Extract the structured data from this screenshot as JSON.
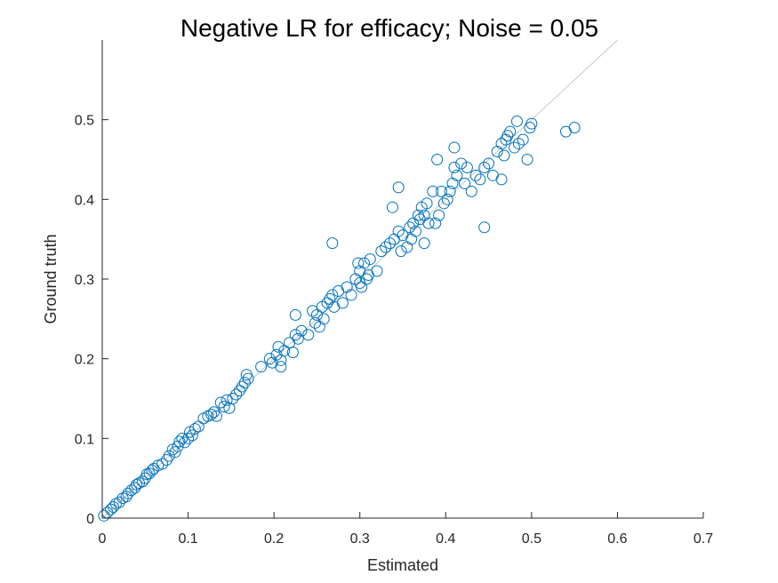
{
  "chart_data": {
    "type": "scatter",
    "title": "Negative LR for efficacy; Noise = 0.05",
    "xlabel": "Estimated",
    "ylabel": "Ground truth",
    "xlim": [
      0,
      0.7
    ],
    "ylim": [
      0,
      0.6
    ],
    "xticks": [
      "0",
      "0.1",
      "0.2",
      "0.3",
      "0.4",
      "0.5",
      "0.6",
      "0.7"
    ],
    "yticks": [
      "0",
      "0.1",
      "0.2",
      "0.3",
      "0.4",
      "0.5"
    ],
    "xtick_values": [
      0,
      0.1,
      0.2,
      0.3,
      0.4,
      0.5,
      0.6,
      0.7
    ],
    "ytick_values": [
      0,
      0.1,
      0.2,
      0.3,
      0.4,
      0.5
    ],
    "grid": false,
    "marker_color": "#0072BD",
    "reference_line": {
      "color": "#c8c8c8",
      "x": [
        0,
        0.6
      ],
      "y": [
        0,
        0.6
      ]
    },
    "x": [
      0.002,
      0.006,
      0.01,
      0.013,
      0.016,
      0.02,
      0.024,
      0.028,
      0.03,
      0.034,
      0.038,
      0.04,
      0.043,
      0.047,
      0.05,
      0.052,
      0.055,
      0.058,
      0.06,
      0.065,
      0.07,
      0.075,
      0.078,
      0.082,
      0.085,
      0.088,
      0.09,
      0.093,
      0.096,
      0.1,
      0.102,
      0.105,
      0.108,
      0.112,
      0.118,
      0.123,
      0.127,
      0.13,
      0.133,
      0.138,
      0.142,
      0.145,
      0.148,
      0.152,
      0.156,
      0.16,
      0.163,
      0.166,
      0.168,
      0.17,
      0.185,
      0.195,
      0.198,
      0.203,
      0.205,
      0.208,
      0.212,
      0.218,
      0.222,
      0.225,
      0.228,
      0.232,
      0.24,
      0.245,
      0.248,
      0.25,
      0.253,
      0.256,
      0.258,
      0.262,
      0.265,
      0.268,
      0.27,
      0.275,
      0.28,
      0.285,
      0.29,
      0.295,
      0.298,
      0.3,
      0.302,
      0.305,
      0.308,
      0.31,
      0.312,
      0.32,
      0.325,
      0.33,
      0.335,
      0.34,
      0.345,
      0.348,
      0.35,
      0.355,
      0.358,
      0.36,
      0.362,
      0.365,
      0.368,
      0.37,
      0.372,
      0.375,
      0.378,
      0.38,
      0.385,
      0.388,
      0.392,
      0.395,
      0.398,
      0.402,
      0.405,
      0.408,
      0.41,
      0.413,
      0.418,
      0.422,
      0.425,
      0.43,
      0.435,
      0.44,
      0.445,
      0.45,
      0.455,
      0.46,
      0.465,
      0.468,
      0.47,
      0.472,
      0.475,
      0.48,
      0.485,
      0.49,
      0.495,
      0.498,
      0.54,
      0.55,
      0.268,
      0.345,
      0.39,
      0.41,
      0.445,
      0.465,
      0.483,
      0.5,
      0.225,
      0.208,
      0.3,
      0.338,
      0.375
    ],
    "y": [
      0.003,
      0.007,
      0.011,
      0.014,
      0.018,
      0.02,
      0.025,
      0.027,
      0.031,
      0.035,
      0.038,
      0.042,
      0.044,
      0.046,
      0.05,
      0.055,
      0.056,
      0.06,
      0.062,
      0.066,
      0.068,
      0.073,
      0.078,
      0.086,
      0.083,
      0.09,
      0.096,
      0.1,
      0.095,
      0.1,
      0.108,
      0.104,
      0.112,
      0.115,
      0.125,
      0.128,
      0.13,
      0.133,
      0.128,
      0.145,
      0.14,
      0.148,
      0.138,
      0.15,
      0.155,
      0.16,
      0.165,
      0.17,
      0.18,
      0.175,
      0.19,
      0.2,
      0.195,
      0.205,
      0.215,
      0.198,
      0.21,
      0.22,
      0.208,
      0.23,
      0.225,
      0.235,
      0.23,
      0.26,
      0.245,
      0.255,
      0.24,
      0.265,
      0.25,
      0.27,
      0.275,
      0.28,
      0.265,
      0.285,
      0.27,
      0.29,
      0.28,
      0.3,
      0.32,
      0.31,
      0.29,
      0.32,
      0.3,
      0.305,
      0.325,
      0.31,
      0.335,
      0.34,
      0.345,
      0.35,
      0.36,
      0.335,
      0.355,
      0.34,
      0.365,
      0.35,
      0.37,
      0.36,
      0.38,
      0.375,
      0.39,
      0.38,
      0.395,
      0.37,
      0.41,
      0.37,
      0.38,
      0.41,
      0.395,
      0.4,
      0.41,
      0.42,
      0.44,
      0.43,
      0.445,
      0.42,
      0.44,
      0.41,
      0.43,
      0.425,
      0.44,
      0.445,
      0.43,
      0.46,
      0.47,
      0.455,
      0.475,
      0.48,
      0.485,
      0.465,
      0.47,
      0.475,
      0.45,
      0.49,
      0.485,
      0.49,
      0.345,
      0.415,
      0.45,
      0.465,
      0.365,
      0.425,
      0.498,
      0.495,
      0.255,
      0.19,
      0.295,
      0.39,
      0.345
    ]
  }
}
